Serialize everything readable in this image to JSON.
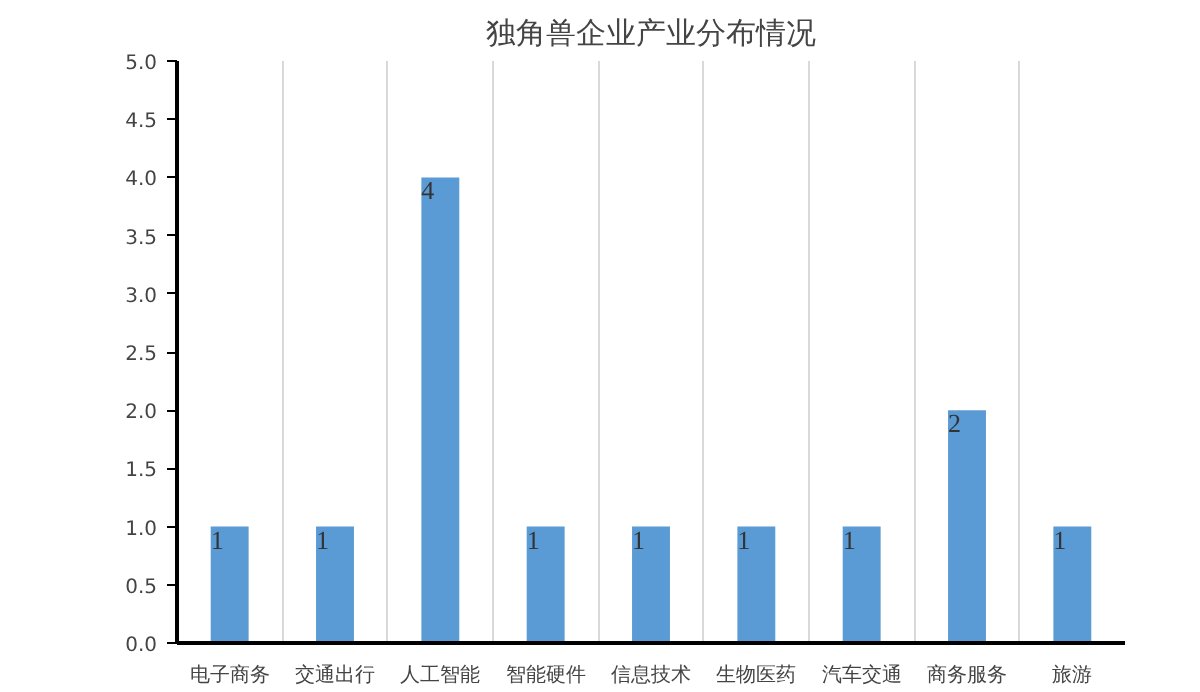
{
  "chart_data": {
    "type": "bar",
    "title": "独角兽企业产业分布情况",
    "categories": [
      "电子商务",
      "交通出行",
      "人工智能",
      "智能硬件",
      "信息技术",
      "生物医药",
      "汽车交通",
      "商务服务",
      "旅游"
    ],
    "values": [
      1,
      1,
      4,
      1,
      1,
      1,
      1,
      2,
      1
    ],
    "color": "#5b9bd5",
    "ylim": [
      0,
      5
    ],
    "yticks": [
      "0.0",
      "0.5",
      "1.0",
      "1.5",
      "2.0",
      "2.5",
      "3.0",
      "3.5",
      "4.0",
      "4.5",
      "5.0"
    ],
    "grid": "x",
    "data_labels": true
  }
}
